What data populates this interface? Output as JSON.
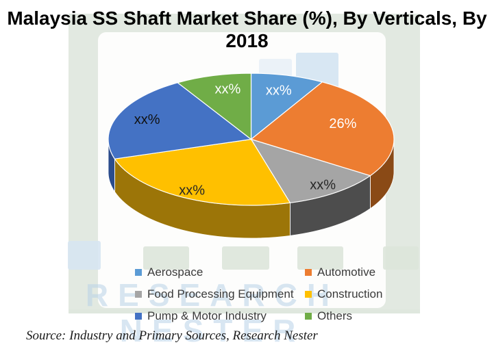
{
  "title": {
    "line1": "Malaysia SS Shaft Market Share (%), By Verticals, By",
    "line2": "2018"
  },
  "source": "Source: Industry and Primary Sources, Research Nester",
  "watermark": {
    "line1": "RESEARCH",
    "line2": "NESTER"
  },
  "chart_data": {
    "type": "pie",
    "is_3d": true,
    "title": "Malaysia SS Shaft Market Share (%), By Verticals, By 2018",
    "categories": [
      "Aerospace",
      "Automotive",
      "Food Processing Equipment",
      "Construction",
      "Pump & Motor Industry",
      "Others"
    ],
    "values": [
      8.3,
      26,
      11.3,
      24.6,
      21.2,
      8.6
    ],
    "displayed_labels": [
      "xx%",
      "26%",
      "xx%",
      "xx%",
      "xx%",
      "xx%"
    ],
    "colors": [
      "#5B9BD5",
      "#ED7D31",
      "#A5A5A5",
      "#FFC000",
      "#4472C4",
      "#70AD47"
    ],
    "side_colors": [
      "#3f6f9e",
      "#8a4a16",
      "#4d4d4d",
      "#9c7508",
      "#2b4c8c",
      "#4e7a31"
    ],
    "label_text_colors": [
      "#ffffff",
      "#ffffff",
      "#262626",
      "#262626",
      "#111111",
      "#ffffff"
    ],
    "legend_position": "bottom"
  },
  "legend": {
    "items": [
      {
        "label": "Aerospace",
        "color": "#5B9BD5"
      },
      {
        "label": "Automotive",
        "color": "#ED7D31"
      },
      {
        "label": "Food Processing Equipment",
        "color": "#A5A5A5"
      },
      {
        "label": "Construction",
        "color": "#FFC000"
      },
      {
        "label": "Pump & Motor Industry",
        "color": "#4472C4"
      },
      {
        "label": "Others",
        "color": "#70AD47"
      }
    ]
  }
}
